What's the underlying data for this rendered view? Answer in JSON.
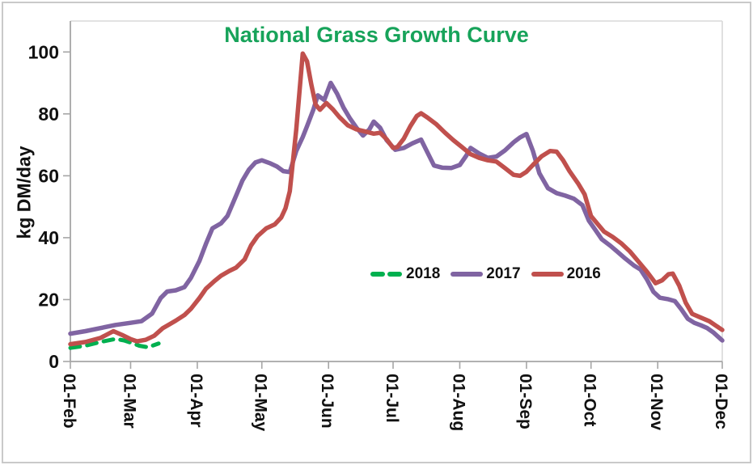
{
  "chart_data": {
    "type": "line",
    "title": "National Grass Growth Curve",
    "title_color": "#17a35a",
    "ylabel": "kg DM/day",
    "xlabel": "",
    "x_unit": "days since 01-Feb",
    "ylim": [
      0,
      110
    ],
    "grid": false,
    "legend_position": "middle-right-horizontal",
    "axis_color": "#a6a6a6",
    "frame_color": "#d9d9d9",
    "y_ticks": [
      {
        "label": "0",
        "value": 0
      },
      {
        "label": "20",
        "value": 20
      },
      {
        "label": "40",
        "value": 40
      },
      {
        "label": "60",
        "value": 60
      },
      {
        "label": "80",
        "value": 80
      },
      {
        "label": "100",
        "value": 100
      }
    ],
    "x_ticks": [
      {
        "label": "01-Feb",
        "day": 0
      },
      {
        "label": "01-Mar",
        "day": 28
      },
      {
        "label": "01-Apr",
        "day": 59
      },
      {
        "label": "01-May",
        "day": 89
      },
      {
        "label": "01-Jun",
        "day": 120
      },
      {
        "label": "01-Jul",
        "day": 150
      },
      {
        "label": "01-Aug",
        "day": 181
      },
      {
        "label": "01-Sep",
        "day": 212
      },
      {
        "label": "01-Oct",
        "day": 242
      },
      {
        "label": "01-Nov",
        "day": 273
      },
      {
        "label": "01-Dec",
        "day": 303
      }
    ],
    "series": [
      {
        "name": "2018",
        "color": "#00b04f",
        "dash": true,
        "points": [
          [
            0,
            4.4
          ],
          [
            7,
            5.1
          ],
          [
            14,
            6.3
          ],
          [
            21,
            7.3
          ],
          [
            25,
            6.8
          ],
          [
            28,
            6.1
          ],
          [
            32,
            5.1
          ],
          [
            36,
            4.6
          ],
          [
            41,
            5.8
          ]
        ]
      },
      {
        "name": "2017",
        "color": "#8064a2",
        "dash": false,
        "points": [
          [
            0,
            9
          ],
          [
            7,
            9.8
          ],
          [
            14,
            10.8
          ],
          [
            21,
            11.8
          ],
          [
            28,
            12.5
          ],
          [
            33,
            13
          ],
          [
            38,
            15.5
          ],
          [
            42,
            20.5
          ],
          [
            45,
            22.6
          ],
          [
            49,
            23
          ],
          [
            53,
            24
          ],
          [
            56,
            27
          ],
          [
            60,
            32.5
          ],
          [
            63,
            38
          ],
          [
            66,
            43
          ],
          [
            70,
            44.6
          ],
          [
            73,
            47
          ],
          [
            77,
            53.5
          ],
          [
            80,
            58.5
          ],
          [
            83,
            62
          ],
          [
            86,
            64.3
          ],
          [
            89,
            65
          ],
          [
            93,
            64
          ],
          [
            96,
            63
          ],
          [
            99,
            61.5
          ],
          [
            102,
            61.2
          ],
          [
            105,
            68
          ],
          [
            108,
            72.5
          ],
          [
            110,
            76
          ],
          [
            113,
            81.5
          ],
          [
            115,
            86
          ],
          [
            118,
            84.5
          ],
          [
            121,
            90
          ],
          [
            124,
            86.5
          ],
          [
            127,
            82
          ],
          [
            130,
            78.5
          ],
          [
            133,
            75.5
          ],
          [
            136,
            73
          ],
          [
            139,
            75
          ],
          [
            141,
            77.5
          ],
          [
            144,
            75.5
          ],
          [
            147,
            71.5
          ],
          [
            151,
            68.4
          ],
          [
            155,
            69
          ],
          [
            159,
            70.5
          ],
          [
            163,
            71.7
          ],
          [
            166,
            67.5
          ],
          [
            169,
            63.3
          ],
          [
            173,
            62.6
          ],
          [
            177,
            62.5
          ],
          [
            181,
            63.5
          ],
          [
            184,
            66.5
          ],
          [
            186,
            69
          ],
          [
            190,
            67.2
          ],
          [
            194,
            65.8
          ],
          [
            198,
            66.2
          ],
          [
            202,
            68.2
          ],
          [
            206,
            70.8
          ],
          [
            209,
            72.4
          ],
          [
            212,
            73.5
          ],
          [
            215,
            68
          ],
          [
            218,
            60.8
          ],
          [
            222,
            56
          ],
          [
            226,
            54.4
          ],
          [
            230,
            53.6
          ],
          [
            234,
            52.6
          ],
          [
            238,
            50.5
          ],
          [
            241,
            45.5
          ],
          [
            244,
            42.5
          ],
          [
            247,
            39.5
          ],
          [
            251,
            37.4
          ],
          [
            255,
            35
          ],
          [
            258,
            33.2
          ],
          [
            262,
            31
          ],
          [
            265,
            29.7
          ],
          [
            268,
            26.5
          ],
          [
            271,
            22.5
          ],
          [
            274,
            20.6
          ],
          [
            278,
            20.1
          ],
          [
            281,
            19.5
          ],
          [
            284,
            16.8
          ],
          [
            287,
            13.8
          ],
          [
            290,
            12.5
          ],
          [
            293,
            11.7
          ],
          [
            296,
            10.8
          ],
          [
            299,
            9.3
          ],
          [
            303,
            6.8
          ]
        ]
      },
      {
        "name": "2016",
        "color": "#c0504d",
        "dash": false,
        "points": [
          [
            0,
            5.6
          ],
          [
            7,
            6.3
          ],
          [
            14,
            7.6
          ],
          [
            20,
            9.8
          ],
          [
            24,
            8.6
          ],
          [
            28,
            7.2
          ],
          [
            31,
            6.5
          ],
          [
            35,
            7
          ],
          [
            39,
            8.3
          ],
          [
            43,
            10.8
          ],
          [
            46,
            12
          ],
          [
            49,
            13.2
          ],
          [
            53,
            15
          ],
          [
            56,
            17
          ],
          [
            60,
            20.5
          ],
          [
            63,
            23.5
          ],
          [
            67,
            26
          ],
          [
            70,
            27.7
          ],
          [
            74,
            29.3
          ],
          [
            77,
            30.3
          ],
          [
            81,
            33
          ],
          [
            84,
            37.5
          ],
          [
            87,
            40.5
          ],
          [
            91,
            43
          ],
          [
            95,
            44.3
          ],
          [
            98,
            46.5
          ],
          [
            100,
            49.5
          ],
          [
            102,
            55
          ],
          [
            105,
            75
          ],
          [
            108,
            99.5
          ],
          [
            110,
            97
          ],
          [
            112,
            89.5
          ],
          [
            114,
            83
          ],
          [
            116,
            81.3
          ],
          [
            119,
            83.5
          ],
          [
            122,
            81.5
          ],
          [
            125,
            79
          ],
          [
            129,
            76.3
          ],
          [
            133,
            75
          ],
          [
            137,
            74.3
          ],
          [
            141,
            73.6
          ],
          [
            144,
            73.9
          ],
          [
            147,
            71.8
          ],
          [
            150,
            69
          ],
          [
            152,
            69.3
          ],
          [
            155,
            72
          ],
          [
            158,
            76
          ],
          [
            161,
            79.3
          ],
          [
            163,
            80.2
          ],
          [
            166,
            78.8
          ],
          [
            170,
            76.7
          ],
          [
            174,
            74
          ],
          [
            178,
            71.5
          ],
          [
            182,
            69.3
          ],
          [
            186,
            67
          ],
          [
            190,
            65.8
          ],
          [
            194,
            65
          ],
          [
            198,
            64.6
          ],
          [
            202,
            62.5
          ],
          [
            206,
            60.3
          ],
          [
            209,
            60
          ],
          [
            212,
            61.3
          ],
          [
            215,
            63.5
          ],
          [
            219,
            66.3
          ],
          [
            223,
            68
          ],
          [
            226,
            67.8
          ],
          [
            229,
            65
          ],
          [
            232,
            61.5
          ],
          [
            236,
            57.5
          ],
          [
            239,
            54
          ],
          [
            242,
            47
          ],
          [
            245,
            44.5
          ],
          [
            248,
            42
          ],
          [
            252,
            40.3
          ],
          [
            256,
            38.2
          ],
          [
            260,
            35.6
          ],
          [
            264,
            32.3
          ],
          [
            268,
            29
          ],
          [
            272,
            25.3
          ],
          [
            275,
            26.2
          ],
          [
            278,
            28.2
          ],
          [
            280,
            28.4
          ],
          [
            283,
            24.5
          ],
          [
            286,
            19
          ],
          [
            289,
            15.4
          ],
          [
            293,
            14.2
          ],
          [
            297,
            13
          ],
          [
            300,
            11.6
          ],
          [
            303,
            10.2
          ]
        ]
      }
    ]
  }
}
